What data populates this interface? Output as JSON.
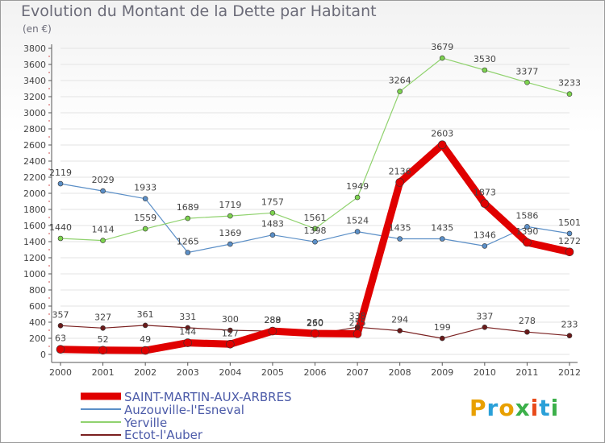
{
  "title": "Evolution du Montant de la Dette par Habitant",
  "unit": "(en €)",
  "brand": "Proxiti",
  "colors": {
    "axis": "#555555",
    "grid": "#e3e3e3",
    "text": "#444444"
  },
  "chart_data": {
    "type": "line",
    "x": [
      "2000",
      "2001",
      "2002",
      "2003",
      "2004",
      "2005",
      "2006",
      "2007",
      "2008",
      "2009",
      "2010",
      "2011",
      "2012"
    ],
    "ylim": [
      0,
      3800
    ],
    "yticks": [
      0,
      200,
      400,
      600,
      800,
      1000,
      1200,
      1400,
      1600,
      1800,
      2000,
      2200,
      2400,
      2600,
      2800,
      3000,
      3200,
      3400,
      3600,
      3800
    ],
    "grid": true,
    "legend_placement": "bottom-left",
    "series": [
      {
        "name": "SAINT-MARTIN-AUX-ARBRES",
        "color": "#e00000",
        "width": 9,
        "values": [
          63,
          52,
          49,
          144,
          127,
          289,
          260,
          255,
          2136,
          2603,
          1873,
          1390,
          1272
        ],
        "labels": [
          "63",
          "52",
          "49",
          "144",
          "127",
          "289",
          "260",
          "255",
          "2136",
          "2603",
          "1873",
          "1390",
          "1272"
        ]
      },
      {
        "name": "Auzouville-l'Esneval",
        "color": "#5b8fc7",
        "width": 1.2,
        "values": [
          2119,
          2029,
          1933,
          1265,
          1369,
          1483,
          1398,
          1524,
          1435,
          1435,
          1346,
          1586,
          1501
        ],
        "labels": [
          "2119",
          "2029",
          "1933",
          "1265",
          "1369",
          "1483",
          "1398",
          "1524",
          "1435",
          "1435",
          "1346",
          "1586",
          "1501"
        ]
      },
      {
        "name": "Yerville",
        "color": "#90d26e",
        "width": 1.2,
        "values": [
          1440,
          1414,
          1559,
          1689,
          1719,
          1757,
          1561,
          1949,
          3264,
          3679,
          3530,
          3377,
          3233
        ],
        "labels": [
          "1440",
          "1414",
          "1559",
          "1689",
          "1719",
          "1757",
          "1561",
          "1949",
          "3264",
          "3679",
          "3530",
          "3377",
          "3233"
        ]
      },
      {
        "name": "Ectot-l'Auber",
        "color": "#7a2020",
        "width": 1.2,
        "values": [
          357,
          327,
          361,
          331,
          300,
          288,
          250,
          338,
          294,
          199,
          337,
          278,
          233
        ],
        "labels": [
          "357",
          "327",
          "361",
          "331",
          "300",
          "288",
          "250",
          "338",
          "294",
          "199",
          "337",
          "278",
          "233"
        ]
      }
    ]
  }
}
